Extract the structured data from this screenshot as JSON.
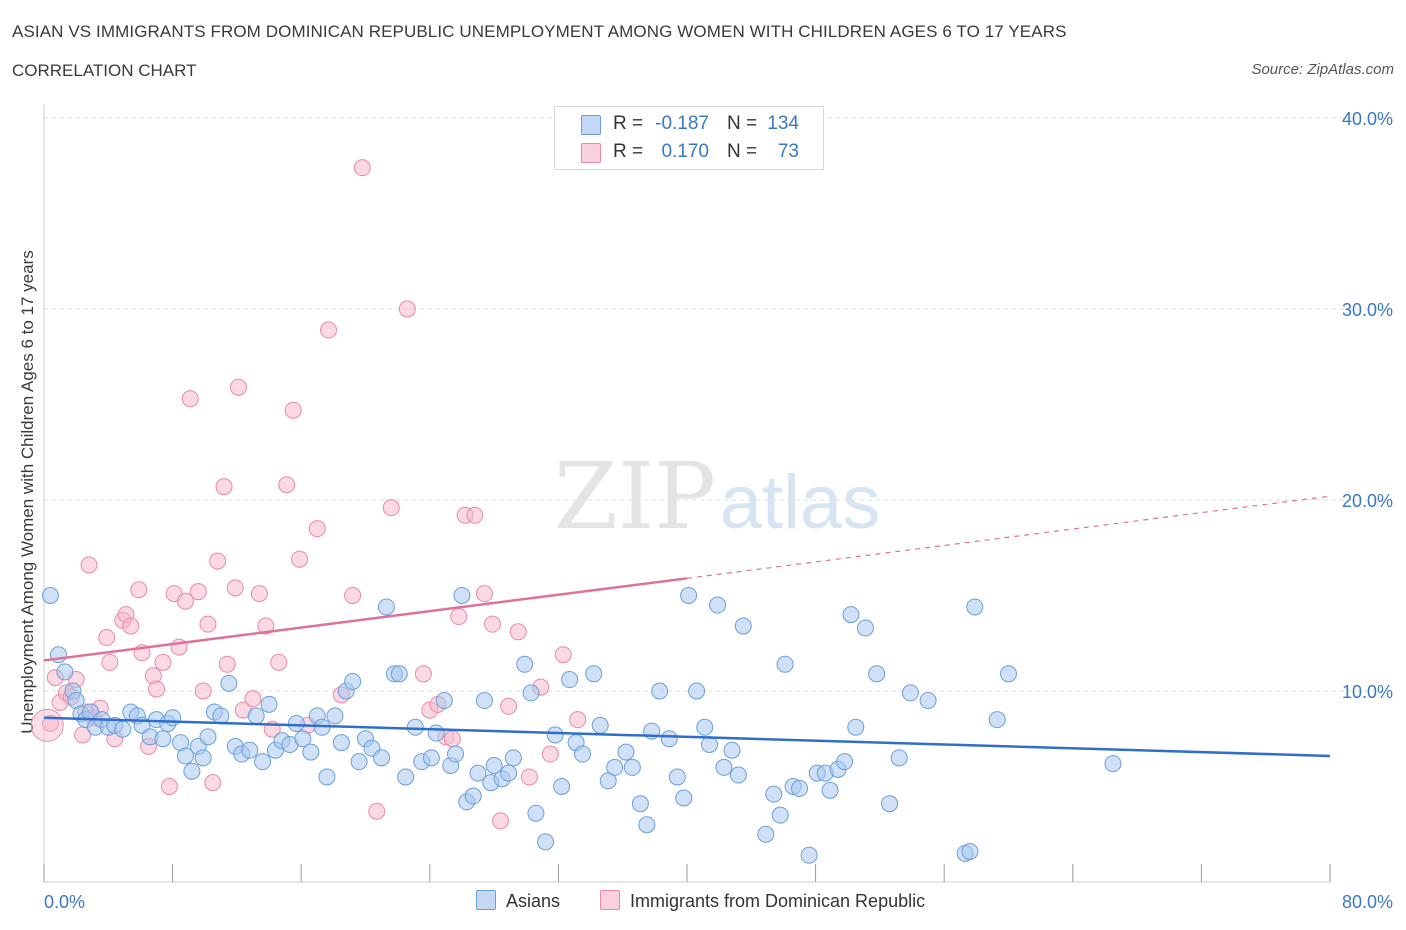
{
  "header": {
    "title": "ASIAN VS IMMIGRANTS FROM DOMINICAN REPUBLIC UNEMPLOYMENT AMONG WOMEN WITH CHILDREN AGES 6 TO 17 YEARS",
    "subtitle": "CORRELATION CHART",
    "source": "Source: ZipAtlas.com"
  },
  "watermark": {
    "zip": "ZIP",
    "atlas": "atlas"
  },
  "legend": {
    "rows": [
      {
        "r_label": "R =",
        "r_value": "-0.187",
        "n_label": "N =",
        "n_value": "134",
        "color": "#a9c8f0"
      },
      {
        "r_label": "R =",
        "r_value": "0.170",
        "n_label": "N =",
        "n_value": "73",
        "color": "#f6b9cb"
      }
    ]
  },
  "bottom_legend": {
    "asians": "Asians",
    "dominican": "Immigrants from Dominican Republic"
  },
  "colors": {
    "asian_fill": "#a9c8f0",
    "asian_stroke": "#6a9fd8",
    "asian_line": "#2f6fcb",
    "dom_fill": "#f6b9cb",
    "dom_stroke": "#e98aa8",
    "dom_line": "#e0709a",
    "tick_label": "#3a78c6",
    "grid": "#dddddd"
  },
  "chart_data": {
    "type": "scatter",
    "xlabel": "",
    "ylabel": "Unemployment Among Women with Children Ages 6 to 17 years",
    "xlim": [
      0,
      80
    ],
    "ylim": [
      0,
      40
    ],
    "x_tick_labels": [
      {
        "value": 0,
        "label": "0.0%"
      },
      {
        "value": 80,
        "label": "80.0%"
      }
    ],
    "y_tick_labels": [
      {
        "value": 10,
        "label": "10.0%"
      },
      {
        "value": 20,
        "label": "20.0%"
      },
      {
        "value": 30,
        "label": "30.0%"
      },
      {
        "value": 40,
        "label": "40.0%"
      }
    ],
    "grid": true,
    "legend_position": "top-center",
    "series": [
      {
        "name": "Asians",
        "trend": {
          "x": [
            0,
            80
          ],
          "y": [
            8.6,
            6.6
          ],
          "style": "solid"
        },
        "points": [
          [
            0.4,
            15.0
          ],
          [
            0.9,
            11.9
          ],
          [
            1.3,
            11.0
          ],
          [
            1.8,
            10.0
          ],
          [
            2.0,
            9.5
          ],
          [
            2.3,
            8.8
          ],
          [
            2.6,
            8.5
          ],
          [
            2.9,
            8.9
          ],
          [
            3.2,
            8.1
          ],
          [
            3.6,
            8.5
          ],
          [
            4.0,
            8.1
          ],
          [
            4.4,
            8.2
          ],
          [
            4.9,
            8.0
          ],
          [
            5.4,
            8.9
          ],
          [
            5.8,
            8.7
          ],
          [
            6.1,
            8.2
          ],
          [
            6.6,
            7.6
          ],
          [
            7.0,
            8.5
          ],
          [
            7.4,
            7.5
          ],
          [
            7.7,
            8.3
          ],
          [
            8.0,
            8.6
          ],
          [
            8.5,
            7.3
          ],
          [
            8.8,
            6.6
          ],
          [
            9.2,
            5.8
          ],
          [
            9.6,
            7.1
          ],
          [
            9.9,
            6.5
          ],
          [
            10.2,
            7.6
          ],
          [
            10.6,
            8.9
          ],
          [
            11.0,
            8.7
          ],
          [
            11.5,
            10.4
          ],
          [
            11.9,
            7.1
          ],
          [
            12.3,
            6.7
          ],
          [
            12.8,
            6.9
          ],
          [
            13.2,
            8.7
          ],
          [
            13.6,
            6.3
          ],
          [
            14.0,
            9.3
          ],
          [
            14.4,
            6.9
          ],
          [
            14.8,
            7.4
          ],
          [
            15.3,
            7.2
          ],
          [
            15.7,
            8.3
          ],
          [
            16.1,
            7.5
          ],
          [
            16.6,
            6.8
          ],
          [
            17.0,
            8.7
          ],
          [
            17.3,
            8.1
          ],
          [
            17.6,
            5.5
          ],
          [
            18.1,
            8.7
          ],
          [
            18.5,
            7.3
          ],
          [
            18.8,
            10.0
          ],
          [
            19.2,
            10.5
          ],
          [
            19.6,
            6.3
          ],
          [
            20.0,
            7.5
          ],
          [
            20.4,
            7.0
          ],
          [
            21.0,
            6.5
          ],
          [
            21.3,
            14.4
          ],
          [
            21.8,
            10.9
          ],
          [
            22.1,
            10.9
          ],
          [
            22.5,
            5.5
          ],
          [
            23.1,
            8.1
          ],
          [
            23.5,
            6.3
          ],
          [
            24.1,
            6.5
          ],
          [
            24.4,
            7.8
          ],
          [
            24.9,
            9.5
          ],
          [
            25.3,
            6.1
          ],
          [
            25.6,
            6.7
          ],
          [
            26.0,
            15.0
          ],
          [
            26.3,
            4.2
          ],
          [
            26.7,
            4.5
          ],
          [
            27.0,
            5.7
          ],
          [
            27.4,
            9.5
          ],
          [
            27.8,
            5.2
          ],
          [
            28.0,
            6.1
          ],
          [
            28.5,
            5.4
          ],
          [
            28.9,
            5.7
          ],
          [
            29.2,
            6.5
          ],
          [
            29.9,
            11.4
          ],
          [
            30.3,
            9.9
          ],
          [
            30.6,
            3.6
          ],
          [
            31.2,
            2.1
          ],
          [
            31.8,
            7.7
          ],
          [
            32.2,
            5.0
          ],
          [
            32.7,
            10.6
          ],
          [
            33.1,
            7.3
          ],
          [
            33.5,
            6.7
          ],
          [
            34.2,
            10.9
          ],
          [
            34.6,
            8.2
          ],
          [
            35.1,
            5.3
          ],
          [
            35.5,
            6.0
          ],
          [
            36.2,
            6.8
          ],
          [
            36.6,
            6.0
          ],
          [
            37.1,
            4.1
          ],
          [
            37.5,
            3.0
          ],
          [
            37.8,
            7.9
          ],
          [
            38.3,
            10.0
          ],
          [
            38.9,
            7.5
          ],
          [
            39.4,
            5.5
          ],
          [
            39.8,
            4.4
          ],
          [
            40.1,
            15.0
          ],
          [
            40.6,
            10.0
          ],
          [
            41.1,
            8.1
          ],
          [
            41.4,
            7.2
          ],
          [
            41.9,
            14.5
          ],
          [
            42.3,
            6.0
          ],
          [
            42.8,
            6.9
          ],
          [
            43.2,
            5.6
          ],
          [
            43.5,
            13.4
          ],
          [
            44.9,
            2.5
          ],
          [
            45.4,
            4.6
          ],
          [
            45.8,
            3.5
          ],
          [
            46.1,
            11.4
          ],
          [
            46.6,
            5.0
          ],
          [
            47.0,
            4.9
          ],
          [
            47.6,
            1.4
          ],
          [
            48.1,
            5.7
          ],
          [
            48.6,
            5.7
          ],
          [
            48.9,
            4.8
          ],
          [
            49.4,
            5.9
          ],
          [
            49.8,
            6.3
          ],
          [
            50.2,
            14.0
          ],
          [
            50.5,
            8.1
          ],
          [
            51.1,
            13.3
          ],
          [
            51.8,
            10.9
          ],
          [
            52.6,
            4.1
          ],
          [
            53.2,
            6.5
          ],
          [
            53.9,
            9.9
          ],
          [
            55.0,
            9.5
          ],
          [
            57.3,
            1.5
          ],
          [
            57.6,
            1.6
          ],
          [
            57.9,
            14.4
          ],
          [
            59.3,
            8.5
          ],
          [
            60.0,
            10.9
          ],
          [
            66.5,
            6.2
          ]
        ]
      },
      {
        "name": "Immigrants from Dominican Republic",
        "trend": {
          "x": [
            0,
            40
          ],
          "y": [
            11.6,
            15.9
          ],
          "style": "solid",
          "dashed_extension_to": [
            80,
            20.2
          ]
        },
        "points": [
          [
            0.4,
            8.3
          ],
          [
            0.7,
            10.7
          ],
          [
            1.0,
            9.4
          ],
          [
            1.4,
            9.9
          ],
          [
            1.7,
            9.7
          ],
          [
            2.0,
            10.6
          ],
          [
            2.4,
            7.7
          ],
          [
            2.6,
            8.9
          ],
          [
            2.8,
            16.6
          ],
          [
            3.1,
            8.6
          ],
          [
            3.5,
            9.1
          ],
          [
            3.9,
            12.8
          ],
          [
            4.1,
            11.5
          ],
          [
            4.4,
            7.5
          ],
          [
            4.9,
            13.7
          ],
          [
            5.1,
            14.0
          ],
          [
            5.4,
            13.4
          ],
          [
            5.9,
            15.3
          ],
          [
            6.1,
            12.0
          ],
          [
            6.5,
            7.1
          ],
          [
            6.8,
            10.8
          ],
          [
            7.0,
            10.1
          ],
          [
            7.4,
            11.5
          ],
          [
            7.8,
            5.0
          ],
          [
            8.1,
            15.1
          ],
          [
            8.4,
            12.3
          ],
          [
            8.8,
            14.7
          ],
          [
            9.1,
            25.3
          ],
          [
            9.6,
            15.2
          ],
          [
            9.9,
            10.0
          ],
          [
            10.2,
            13.5
          ],
          [
            10.5,
            5.2
          ],
          [
            10.8,
            16.8
          ],
          [
            11.2,
            20.7
          ],
          [
            11.4,
            11.4
          ],
          [
            12.1,
            25.9
          ],
          [
            11.9,
            15.4
          ],
          [
            12.4,
            9.0
          ],
          [
            13.0,
            9.6
          ],
          [
            13.4,
            15.1
          ],
          [
            13.8,
            13.4
          ],
          [
            14.2,
            8.0
          ],
          [
            14.6,
            11.5
          ],
          [
            15.1,
            20.8
          ],
          [
            15.5,
            24.7
          ],
          [
            15.9,
            16.9
          ],
          [
            16.4,
            8.2
          ],
          [
            17.0,
            18.5
          ],
          [
            17.7,
            28.9
          ],
          [
            18.5,
            9.8
          ],
          [
            19.2,
            15.0
          ],
          [
            19.8,
            37.4
          ],
          [
            20.7,
            3.7
          ],
          [
            21.6,
            19.6
          ],
          [
            22.6,
            30.0
          ],
          [
            23.6,
            10.9
          ],
          [
            24.0,
            9.0
          ],
          [
            24.5,
            9.3
          ],
          [
            25.0,
            7.6
          ],
          [
            25.4,
            7.5
          ],
          [
            25.8,
            13.9
          ],
          [
            26.2,
            19.2
          ],
          [
            26.8,
            19.2
          ],
          [
            27.4,
            15.1
          ],
          [
            27.9,
            13.5
          ],
          [
            28.4,
            3.2
          ],
          [
            28.9,
            9.2
          ],
          [
            29.5,
            13.1
          ],
          [
            30.2,
            5.5
          ],
          [
            30.9,
            10.2
          ],
          [
            31.5,
            6.7
          ],
          [
            32.3,
            11.9
          ],
          [
            33.2,
            8.5
          ]
        ]
      }
    ]
  }
}
